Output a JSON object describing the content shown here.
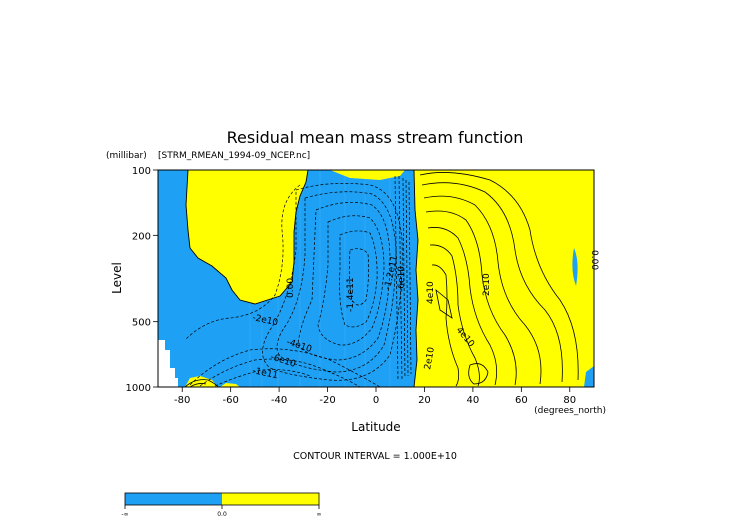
{
  "chart_data": {
    "type": "contour",
    "title": "Residual mean mass stream function",
    "subtitle": "[STRM_RMEAN_1994-09_NCEP.nc]",
    "xlabel": "Latitude",
    "x_units": "(degrees_north)",
    "ylabel": "Level",
    "y_units": "(millibar)",
    "xlim": [
      -90,
      90
    ],
    "ylim": [
      1000,
      100
    ],
    "y_scale": "log",
    "x_ticks": [
      "-80",
      "-60",
      "-40",
      "-20",
      "0",
      "20",
      "40",
      "60",
      "80"
    ],
    "y_ticks": [
      "100",
      "200",
      "500",
      "1000"
    ],
    "contour_interval": "CONTOUR INTERVAL = 1.000E+10",
    "contour_labels": [
      "0.00",
      "-2e10",
      "-4e10",
      "-6e10",
      "-1e11",
      "-1.4e11",
      "-1.2e11",
      "-6e10",
      "4e10",
      "2e10",
      "4e10",
      "2e10",
      "0.00"
    ],
    "fill_colors": {
      "negative": "#1ea0f5",
      "positive": "#ffff00"
    },
    "colorbar": {
      "labels": [
        "-∞",
        "0.0",
        "∞"
      ]
    }
  }
}
